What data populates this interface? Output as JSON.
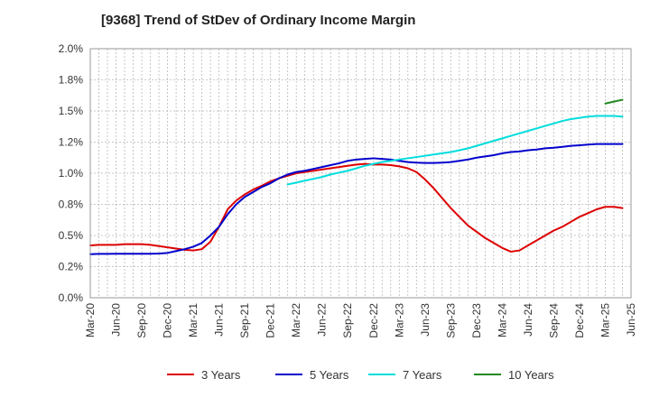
{
  "chart_data": {
    "type": "line",
    "title": "[9368]  Trend of StDev of Ordinary Income Margin",
    "xlabel": "",
    "ylabel": "",
    "ylim": [
      0,
      2.0
    ],
    "y_ticks": [
      "0.0%",
      "0.2%",
      "0.5%",
      "0.8%",
      "1.0%",
      "1.2%",
      "1.5%",
      "1.8%",
      "2.0%"
    ],
    "x_ticks": [
      "Mar-20",
      "Jun-20",
      "Sep-20",
      "Dec-20",
      "Mar-21",
      "Jun-21",
      "Sep-21",
      "Dec-21",
      "Mar-22",
      "Jun-22",
      "Sep-22",
      "Dec-22",
      "Mar-23",
      "Jun-23",
      "Sep-23",
      "Dec-23",
      "Mar-24",
      "Jun-24",
      "Sep-24",
      "Dec-24",
      "Mar-25",
      "Jun-25"
    ],
    "grid": true,
    "legend_position": "bottom",
    "series": [
      {
        "name": "3 Years",
        "color": "#dd0000",
        "points": [
          [
            "Mar-20",
            0.42
          ],
          [
            "Apr-20",
            0.425
          ],
          [
            "May-20",
            0.425
          ],
          [
            "Jun-20",
            0.425
          ],
          [
            "Jul-20",
            0.43
          ],
          [
            "Aug-20",
            0.43
          ],
          [
            "Sep-20",
            0.43
          ],
          [
            "Oct-20",
            0.425
          ],
          [
            "Nov-20",
            0.415
          ],
          [
            "Dec-20",
            0.405
          ],
          [
            "Jan-21",
            0.395
          ],
          [
            "Feb-21",
            0.385
          ],
          [
            "Mar-21",
            0.38
          ],
          [
            "Apr-21",
            0.39
          ],
          [
            "May-21",
            0.45
          ],
          [
            "Jun-21",
            0.57
          ],
          [
            "Jul-21",
            0.71
          ],
          [
            "Aug-21",
            0.78
          ],
          [
            "Sep-21",
            0.83
          ],
          [
            "Oct-21",
            0.87
          ],
          [
            "Nov-21",
            0.9
          ],
          [
            "Dec-21",
            0.935
          ],
          [
            "Jan-22",
            0.96
          ],
          [
            "Feb-22",
            0.98
          ],
          [
            "Mar-22",
            1.0
          ],
          [
            "Apr-22",
            1.01
          ],
          [
            "May-22",
            1.02
          ],
          [
            "Jun-22",
            1.03
          ],
          [
            "Jul-22",
            1.04
          ],
          [
            "Aug-22",
            1.05
          ],
          [
            "Sep-22",
            1.06
          ],
          [
            "Oct-22",
            1.07
          ],
          [
            "Nov-22",
            1.075
          ],
          [
            "Dec-22",
            1.07
          ],
          [
            "Jan-23",
            1.07
          ],
          [
            "Feb-23",
            1.065
          ],
          [
            "Mar-23",
            1.055
          ],
          [
            "Apr-23",
            1.04
          ],
          [
            "May-23",
            1.01
          ],
          [
            "Jun-23",
            0.95
          ],
          [
            "Jul-23",
            0.88
          ],
          [
            "Aug-23",
            0.8
          ],
          [
            "Sep-23",
            0.72
          ],
          [
            "Oct-23",
            0.65
          ],
          [
            "Nov-23",
            0.58
          ],
          [
            "Dec-23",
            0.53
          ],
          [
            "Jan-24",
            0.48
          ],
          [
            "Feb-24",
            0.44
          ],
          [
            "Mar-24",
            0.4
          ],
          [
            "Apr-24",
            0.37
          ],
          [
            "May-24",
            0.38
          ],
          [
            "Jun-24",
            0.42
          ],
          [
            "Jul-24",
            0.46
          ],
          [
            "Aug-24",
            0.5
          ],
          [
            "Sep-24",
            0.54
          ],
          [
            "Oct-24",
            0.57
          ],
          [
            "Nov-24",
            0.61
          ],
          [
            "Dec-24",
            0.65
          ],
          [
            "Jan-25",
            0.68
          ],
          [
            "Feb-25",
            0.71
          ],
          [
            "Mar-25",
            0.73
          ],
          [
            "Apr-25",
            0.73
          ],
          [
            "May-25",
            0.72
          ]
        ]
      },
      {
        "name": "5 Years",
        "color": "#0000cc",
        "points": [
          [
            "Mar-20",
            0.35
          ],
          [
            "Apr-20",
            0.352
          ],
          [
            "May-20",
            0.352
          ],
          [
            "Jun-20",
            0.353
          ],
          [
            "Jul-20",
            0.353
          ],
          [
            "Aug-20",
            0.353
          ],
          [
            "Sep-20",
            0.353
          ],
          [
            "Oct-20",
            0.353
          ],
          [
            "Nov-20",
            0.355
          ],
          [
            "Dec-20",
            0.36
          ],
          [
            "Jan-21",
            0.375
          ],
          [
            "Feb-21",
            0.39
          ],
          [
            "Mar-21",
            0.41
          ],
          [
            "Apr-21",
            0.44
          ],
          [
            "May-21",
            0.5
          ],
          [
            "Jun-21",
            0.57
          ],
          [
            "Jul-21",
            0.67
          ],
          [
            "Aug-21",
            0.75
          ],
          [
            "Sep-21",
            0.81
          ],
          [
            "Oct-21",
            0.85
          ],
          [
            "Nov-21",
            0.89
          ],
          [
            "Dec-21",
            0.92
          ],
          [
            "Jan-22",
            0.96
          ],
          [
            "Feb-22",
            0.99
          ],
          [
            "Mar-22",
            1.01
          ],
          [
            "Apr-22",
            1.02
          ],
          [
            "May-22",
            1.035
          ],
          [
            "Jun-22",
            1.05
          ],
          [
            "Jul-22",
            1.065
          ],
          [
            "Aug-22",
            1.08
          ],
          [
            "Sep-22",
            1.1
          ],
          [
            "Oct-22",
            1.11
          ],
          [
            "Nov-22",
            1.115
          ],
          [
            "Dec-22",
            1.12
          ],
          [
            "Jan-23",
            1.115
          ],
          [
            "Feb-23",
            1.11
          ],
          [
            "Mar-23",
            1.1
          ],
          [
            "Apr-23",
            1.09
          ],
          [
            "May-23",
            1.085
          ],
          [
            "Jun-23",
            1.082
          ],
          [
            "Jul-23",
            1.082
          ],
          [
            "Aug-23",
            1.085
          ],
          [
            "Sep-23",
            1.09
          ],
          [
            "Oct-23",
            1.1
          ],
          [
            "Nov-23",
            1.11
          ],
          [
            "Dec-23",
            1.125
          ],
          [
            "Jan-24",
            1.135
          ],
          [
            "Feb-24",
            1.145
          ],
          [
            "Mar-24",
            1.16
          ],
          [
            "Apr-24",
            1.17
          ],
          [
            "May-24",
            1.175
          ],
          [
            "Jun-24",
            1.185
          ],
          [
            "Jul-24",
            1.19
          ],
          [
            "Aug-24",
            1.2
          ],
          [
            "Sep-24",
            1.205
          ],
          [
            "Oct-24",
            1.212
          ],
          [
            "Nov-24",
            1.22
          ],
          [
            "Dec-24",
            1.225
          ],
          [
            "Jan-25",
            1.23
          ],
          [
            "Feb-25",
            1.235
          ],
          [
            "Mar-25",
            1.235
          ],
          [
            "Apr-25",
            1.235
          ],
          [
            "May-25",
            1.235
          ]
        ]
      },
      {
        "name": "7 Years",
        "color": "#00dddd",
        "points": [
          [
            "Feb-22",
            0.91
          ],
          [
            "Mar-22",
            0.925
          ],
          [
            "Apr-22",
            0.94
          ],
          [
            "May-22",
            0.955
          ],
          [
            "Jun-22",
            0.97
          ],
          [
            "Jul-22",
            0.99
          ],
          [
            "Aug-22",
            1.005
          ],
          [
            "Sep-22",
            1.02
          ],
          [
            "Oct-22",
            1.04
          ],
          [
            "Nov-22",
            1.06
          ],
          [
            "Dec-22",
            1.075
          ],
          [
            "Jan-23",
            1.09
          ],
          [
            "Feb-23",
            1.1
          ],
          [
            "Mar-23",
            1.11
          ],
          [
            "Apr-23",
            1.12
          ],
          [
            "May-23",
            1.13
          ],
          [
            "Jun-23",
            1.14
          ],
          [
            "Jul-23",
            1.15
          ],
          [
            "Aug-23",
            1.16
          ],
          [
            "Sep-23",
            1.17
          ],
          [
            "Oct-23",
            1.185
          ],
          [
            "Nov-23",
            1.2
          ],
          [
            "Dec-23",
            1.22
          ],
          [
            "Jan-24",
            1.24
          ],
          [
            "Feb-24",
            1.26
          ],
          [
            "Mar-24",
            1.28
          ],
          [
            "Apr-24",
            1.3
          ],
          [
            "May-24",
            1.32
          ],
          [
            "Jun-24",
            1.34
          ],
          [
            "Jul-24",
            1.36
          ],
          [
            "Aug-24",
            1.38
          ],
          [
            "Sep-24",
            1.4
          ],
          [
            "Oct-24",
            1.42
          ],
          [
            "Nov-24",
            1.435
          ],
          [
            "Dec-24",
            1.445
          ],
          [
            "Jan-25",
            1.455
          ],
          [
            "Feb-25",
            1.46
          ],
          [
            "Mar-25",
            1.46
          ],
          [
            "Apr-25",
            1.46
          ],
          [
            "May-25",
            1.455
          ]
        ]
      },
      {
        "name": "10 Years",
        "color": "#228822",
        "points": [
          [
            "Mar-25",
            1.56
          ],
          [
            "Apr-25",
            1.575
          ],
          [
            "May-25",
            1.59
          ]
        ]
      }
    ]
  }
}
